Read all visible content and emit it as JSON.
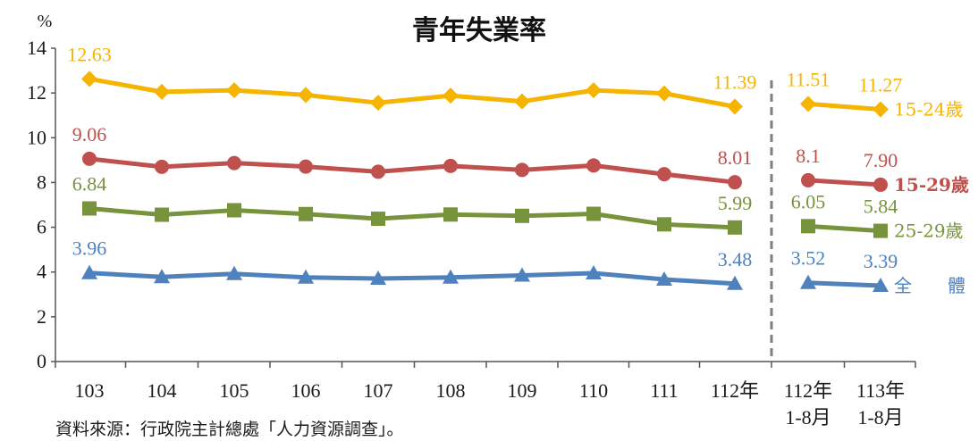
{
  "chart_data": {
    "type": "line",
    "title": "青年失業率",
    "unit": "%",
    "ylim": [
      0,
      14
    ],
    "yticks": [
      "0",
      "2",
      "4",
      "6",
      "8",
      "10",
      "12",
      "14"
    ],
    "grid": false,
    "categories": [
      "103",
      "104",
      "105",
      "106",
      "107",
      "108",
      "109",
      "110",
      "111",
      "112年",
      "112年\n1-8月",
      "113年\n1-8月"
    ],
    "category_lines": [
      [
        "103"
      ],
      [
        "104"
      ],
      [
        "105"
      ],
      [
        "106"
      ],
      [
        "107"
      ],
      [
        "108"
      ],
      [
        "109"
      ],
      [
        "110"
      ],
      [
        "111"
      ],
      [
        "112年"
      ],
      [
        "112年",
        "1-8月"
      ],
      [
        "113年",
        "1-8月"
      ]
    ],
    "break_after_index": 9,
    "series": [
      {
        "name": "15-24歲",
        "color": "#F5B400",
        "marker": "diamond",
        "values": [
          12.63,
          12.05,
          12.12,
          11.91,
          11.56,
          11.88,
          11.62,
          12.12,
          11.98,
          11.39,
          11.51,
          11.27
        ],
        "data_labels": {
          "0": "12.63",
          "9": "11.39",
          "10": "11.51",
          "11": "11.27"
        },
        "label_bold": false
      },
      {
        "name": "15-29歲",
        "color": "#C0504D",
        "marker": "circle",
        "values": [
          9.06,
          8.7,
          8.87,
          8.71,
          8.48,
          8.74,
          8.56,
          8.76,
          8.37,
          8.01,
          8.1,
          7.9
        ],
        "data_labels": {
          "0": "9.06",
          "9": "8.01",
          "10": "8.1",
          "11": "7.90"
        },
        "label_bold": true
      },
      {
        "name": "25-29歲",
        "color": "#77933C",
        "marker": "square",
        "values": [
          6.84,
          6.56,
          6.76,
          6.59,
          6.38,
          6.57,
          6.51,
          6.6,
          6.13,
          5.99,
          6.05,
          5.84
        ],
        "data_labels": {
          "0": "6.84",
          "9": "5.99",
          "10": "6.05",
          "11": "5.84"
        },
        "label_bold": false
      },
      {
        "name": "全　　體",
        "color": "#4F81BD",
        "marker": "triangle",
        "values": [
          3.96,
          3.78,
          3.92,
          3.76,
          3.71,
          3.76,
          3.85,
          3.95,
          3.67,
          3.48,
          3.52,
          3.39
        ],
        "data_labels": {
          "0": "3.96",
          "9": "3.48",
          "10": "3.52",
          "11": "3.39"
        },
        "label_bold": false
      }
    ]
  },
  "footer": {
    "source": "資料來源：行政院主計總處「人力資源調查」。"
  }
}
